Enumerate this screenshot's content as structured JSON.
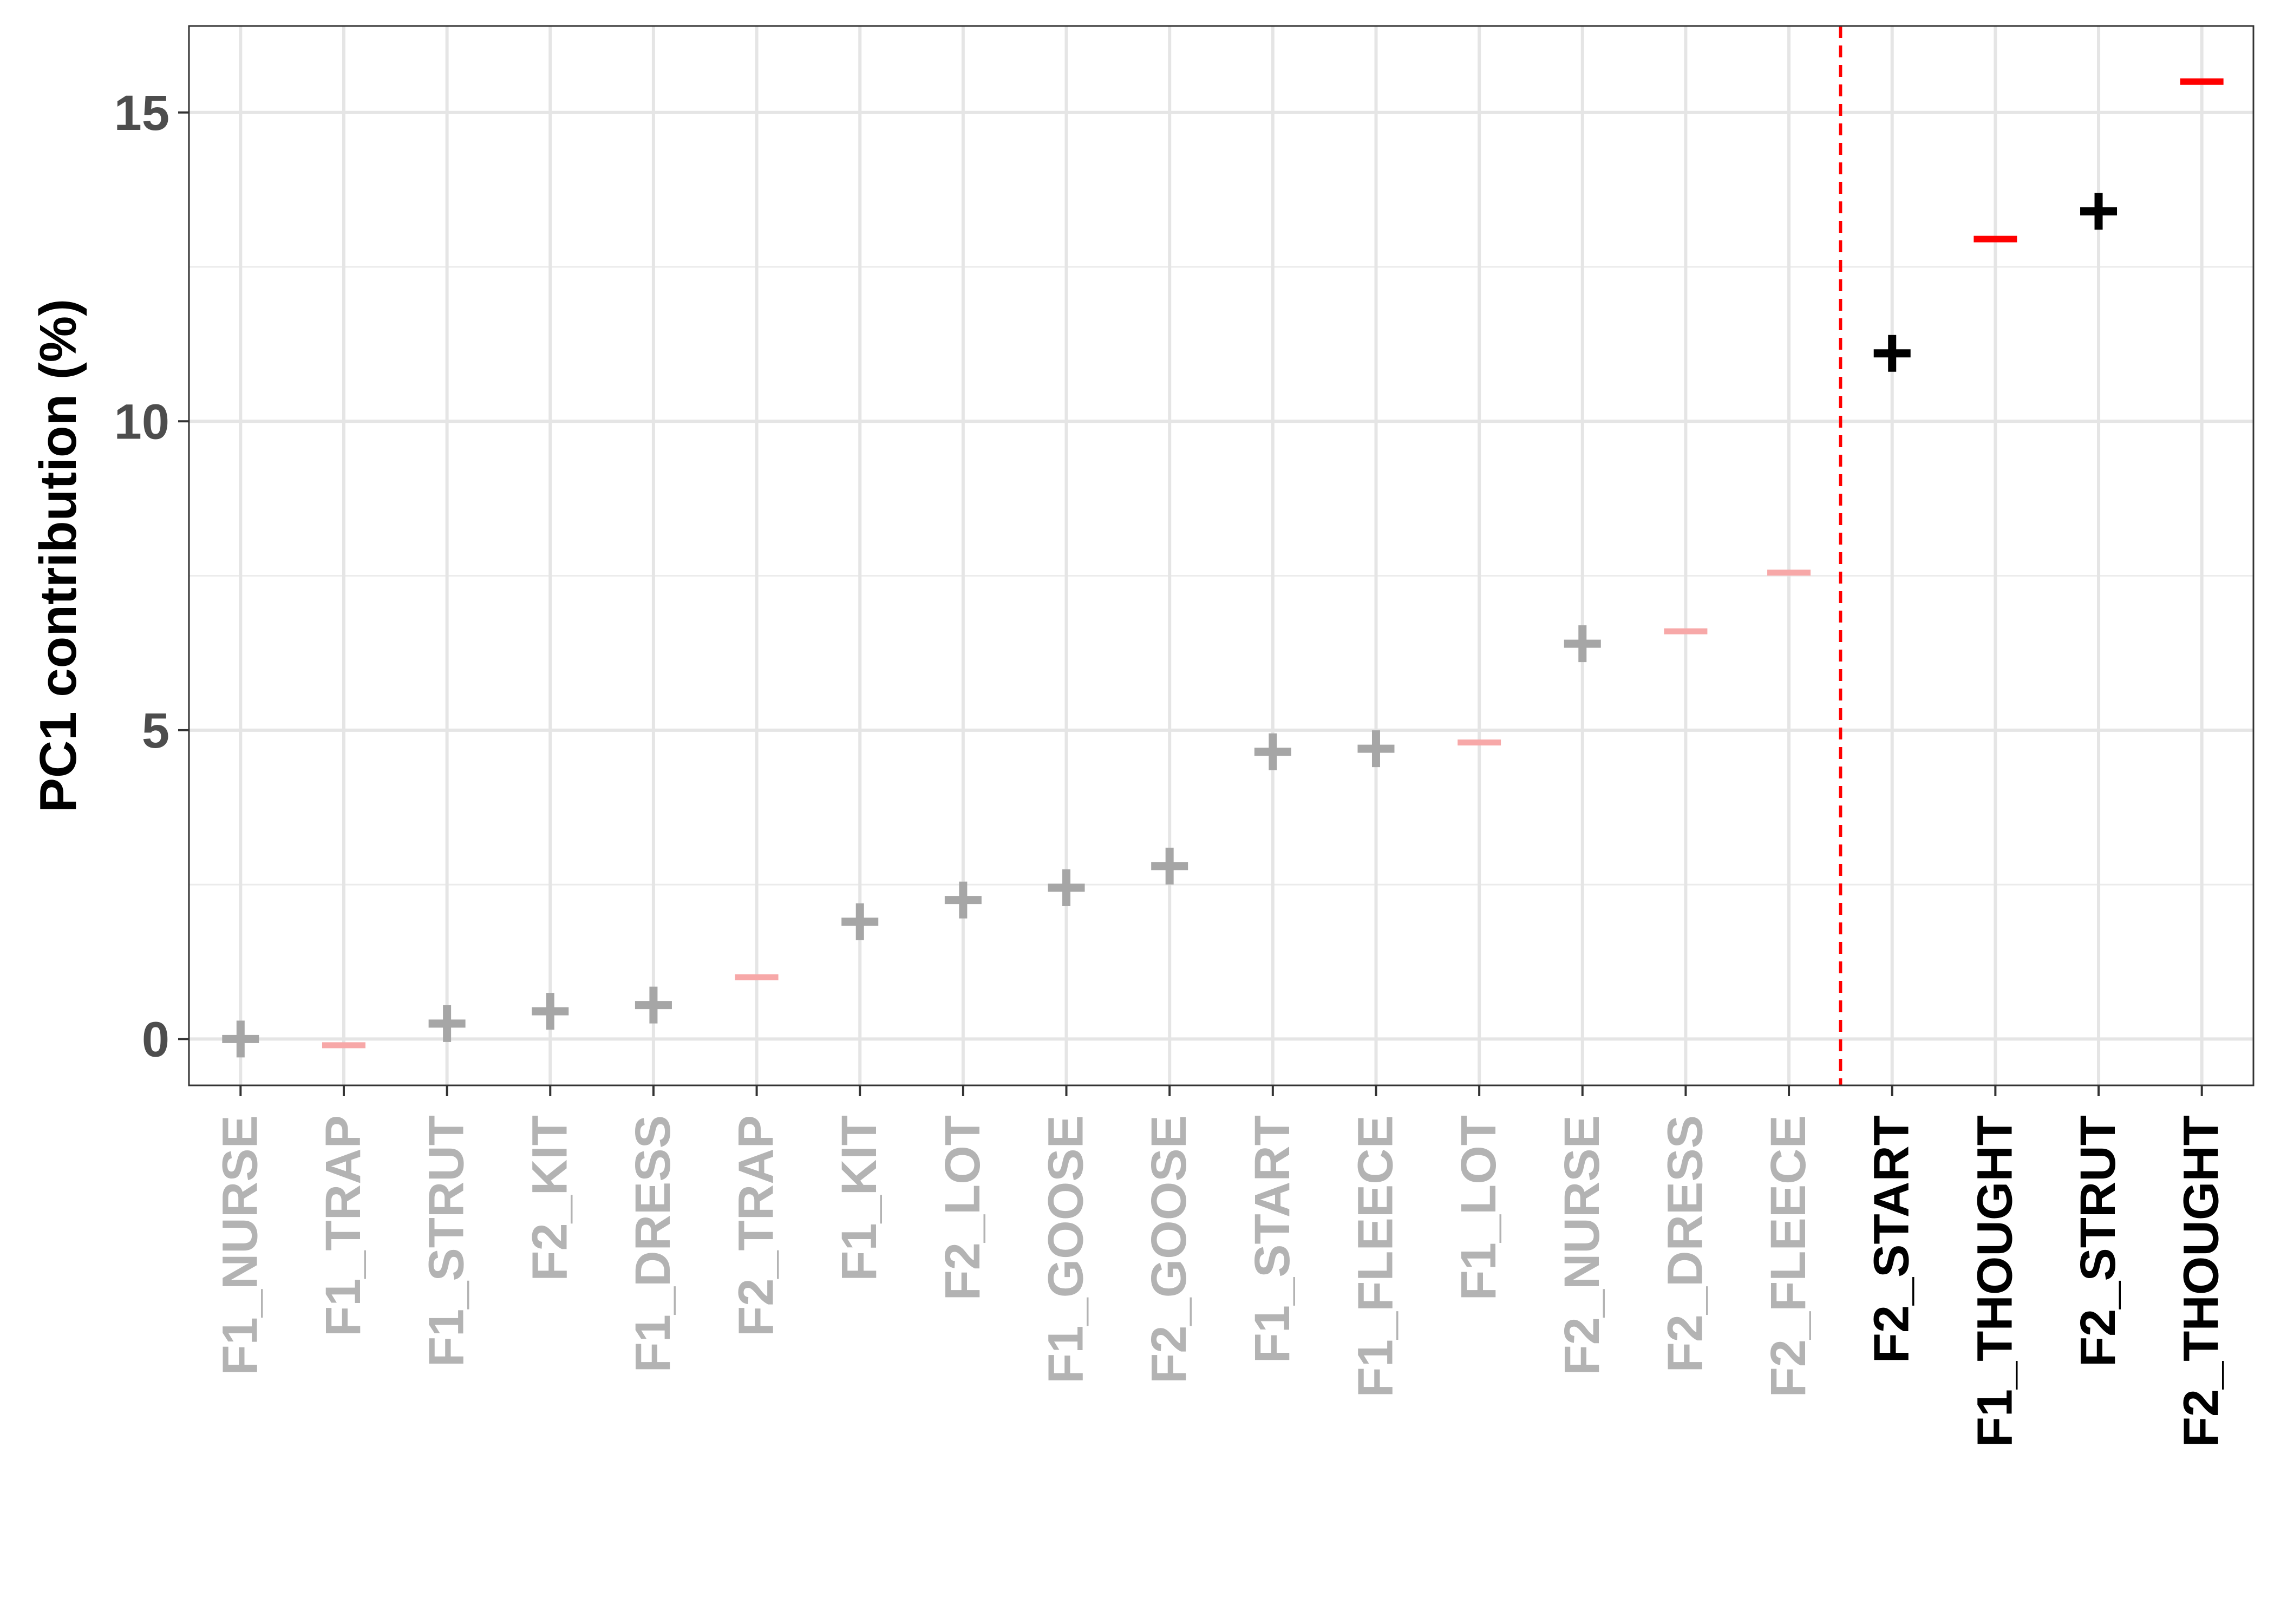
{
  "chart_data": {
    "type": "scatter",
    "title": "",
    "xlabel": "",
    "ylabel": "PC1 contribution (%)",
    "ylim": [
      -0.75,
      16.4
    ],
    "y_ticks": [
      "0",
      "5",
      "10",
      "15"
    ],
    "grid": true,
    "legend": "none",
    "threshold_after_index": 15,
    "colors": {
      "plus_below": "#a6a6a6",
      "minus_below": "#f7a8a8",
      "plus_above": "#000000",
      "minus_above": "#ff0000",
      "label_below": "#b3b3b3",
      "label_above": "#000000",
      "threshold_line": "#ff0000",
      "grid": "#e5e5e5"
    },
    "points": [
      {
        "label": "F1_NURSE",
        "value": 0.0,
        "marker": "plus",
        "highlight": false
      },
      {
        "label": "F1_TRAP",
        "value": -0.1,
        "marker": "minus",
        "highlight": false
      },
      {
        "label": "F1_STRUT",
        "value": 0.25,
        "marker": "plus",
        "highlight": false
      },
      {
        "label": "F2_KIT",
        "value": 0.45,
        "marker": "plus",
        "highlight": false
      },
      {
        "label": "F1_DRESS",
        "value": 0.55,
        "marker": "plus",
        "highlight": false
      },
      {
        "label": "F2_TRAP",
        "value": 1.0,
        "marker": "minus",
        "highlight": false
      },
      {
        "label": "F1_KIT",
        "value": 1.9,
        "marker": "plus",
        "highlight": false
      },
      {
        "label": "F2_LOT",
        "value": 2.25,
        "marker": "plus",
        "highlight": false
      },
      {
        "label": "F1_GOOSE",
        "value": 2.45,
        "marker": "plus",
        "highlight": false
      },
      {
        "label": "F2_GOOSE",
        "value": 2.8,
        "marker": "plus",
        "highlight": false
      },
      {
        "label": "F1_START",
        "value": 4.65,
        "marker": "plus",
        "highlight": false
      },
      {
        "label": "F1_FLEECE",
        "value": 4.7,
        "marker": "plus",
        "highlight": false
      },
      {
        "label": "F1_LOT",
        "value": 4.8,
        "marker": "minus",
        "highlight": false
      },
      {
        "label": "F2_NURSE",
        "value": 6.4,
        "marker": "plus",
        "highlight": false
      },
      {
        "label": "F2_DRESS",
        "value": 6.6,
        "marker": "minus",
        "highlight": false
      },
      {
        "label": "F2_FLEECE",
        "value": 7.55,
        "marker": "minus",
        "highlight": false
      },
      {
        "label": "F2_START",
        "value": 11.1,
        "marker": "plus",
        "highlight": true
      },
      {
        "label": "F1_THOUGHT",
        "value": 12.95,
        "marker": "minus",
        "highlight": true
      },
      {
        "label": "F2_STRUT",
        "value": 13.4,
        "marker": "plus",
        "highlight": true
      },
      {
        "label": "F2_THOUGHT",
        "value": 15.5,
        "marker": "minus",
        "highlight": true
      }
    ]
  }
}
